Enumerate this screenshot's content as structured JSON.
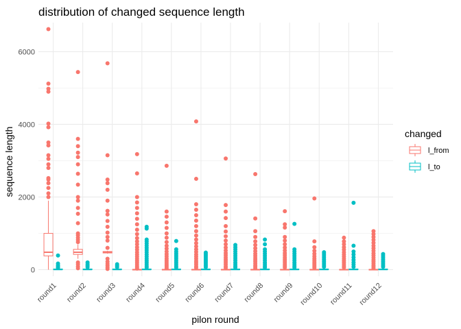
{
  "chart_data": {
    "type": "boxplot",
    "title": "distribution of changed sequence length",
    "xlabel": "pilon round",
    "ylabel": "sequence length",
    "ylim": [
      -180,
      6800
    ],
    "yticks": [
      0,
      2000,
      4000,
      6000
    ],
    "grid": true,
    "legend": {
      "title": "changed",
      "position": "right",
      "entries": [
        {
          "name": "l_from",
          "color": "#F8766D"
        },
        {
          "name": "l_to",
          "color": "#00BFC4"
        }
      ]
    },
    "categories": [
      "round1",
      "round2",
      "round3",
      "round4",
      "round5",
      "round6",
      "round7",
      "round8",
      "round9",
      "round10",
      "round11",
      "round12"
    ],
    "series": [
      {
        "name": "l_from",
        "color": "#F8766D",
        "boxes": [
          {
            "q1": 380,
            "median": 480,
            "q3": 1000,
            "whisker_low": 0,
            "whisker_high": 1900,
            "outliers": [
              6620,
              5120,
              4980,
              4900,
              4020,
              3920,
              3500,
              3420,
              3150,
              3050,
              2900,
              2800,
              2520,
              2480,
              2380,
              2250,
              2100,
              2000
            ]
          },
          {
            "q1": 420,
            "median": 480,
            "q3": 560,
            "whisker_low": 300,
            "whisker_high": 700,
            "outliers": [
              5440,
              3600,
              3400,
              3220,
              3100,
              2900,
              2640,
              2340,
              2000,
              1900,
              1700,
              1540,
              1280,
              1000,
              950,
              880,
              820,
              760,
              200,
              150,
              90,
              40
            ]
          },
          {
            "q1": 460,
            "median": 480,
            "q3": 500,
            "whisker_low": 440,
            "whisker_high": 520,
            "outliers": [
              5680,
              3150,
              2480,
              2380,
              2200,
              1900,
              1620,
              1520,
              1340,
              1180,
              1020,
              900,
              800,
              600,
              300,
              220,
              160,
              110,
              60,
              20
            ]
          },
          {
            "q1": 0,
            "median": 0,
            "q3": 10,
            "whisker_low": 0,
            "whisker_high": 20,
            "outliers": [
              3180,
              2650,
              2000,
              1850,
              1700,
              1550,
              1400,
              1250,
              1100,
              980,
              870,
              780,
              700,
              620,
              550,
              480,
              420,
              360,
              300,
              250,
              200,
              150,
              100,
              60,
              30
            ]
          },
          {
            "q1": 0,
            "median": 0,
            "q3": 10,
            "whisker_low": 0,
            "whisker_high": 20,
            "outliers": [
              2860,
              1600,
              1460,
              1300,
              1150,
              1000,
              880,
              760,
              660,
              580,
              500,
              430,
              370,
              310,
              260,
              210,
              160,
              120,
              80,
              40
            ]
          },
          {
            "q1": 0,
            "median": 0,
            "q3": 10,
            "whisker_low": 0,
            "whisker_high": 20,
            "outliers": [
              4080,
              2500,
              1800,
              1650,
              1500,
              1350,
              1200,
              1060,
              940,
              830,
              730,
              640,
              560,
              490,
              420,
              360,
              300,
              240,
              190,
              140,
              90,
              50
            ]
          },
          {
            "q1": 0,
            "median": 0,
            "q3": 10,
            "whisker_low": 0,
            "whisker_high": 20,
            "outliers": [
              3060,
              1780,
              1600,
              1420,
              1200,
              1050,
              920,
              800,
              700,
              610,
              530,
              460,
              400,
              340,
              290,
              240,
              190,
              140,
              90,
              50
            ]
          },
          {
            "q1": 0,
            "median": 0,
            "q3": 10,
            "whisker_low": 0,
            "whisker_high": 20,
            "outliers": [
              2630,
              1410,
              1060,
              900,
              780,
              680,
              590,
              510,
              440,
              380,
              320,
              270,
              220,
              170,
              120,
              80,
              40
            ]
          },
          {
            "q1": 0,
            "median": 0,
            "q3": 10,
            "whisker_low": 0,
            "whisker_high": 20,
            "outliers": [
              1610,
              1250,
              1160,
              900,
              800,
              700,
              610,
              530,
              460,
              400,
              340,
              290,
              240,
              190,
              140,
              100,
              60
            ]
          },
          {
            "q1": 0,
            "median": 0,
            "q3": 10,
            "whisker_low": 0,
            "whisker_high": 20,
            "outliers": [
              1960,
              780,
              620,
              520,
              440,
              370,
              310,
              260,
              210,
              170,
              130,
              90,
              50
            ]
          },
          {
            "q1": 0,
            "median": 0,
            "q3": 10,
            "whisker_low": 0,
            "whisker_high": 20,
            "outliers": [
              880,
              780,
              700,
              620,
              550,
              480,
              420,
              360,
              300,
              250,
              200,
              150,
              100,
              60
            ]
          },
          {
            "q1": 0,
            "median": 0,
            "q3": 10,
            "whisker_low": 0,
            "whisker_high": 20,
            "outliers": [
              1060,
              980,
              900,
              820,
              740,
              660,
              590,
              520,
              450,
              390,
              330,
              270,
              220,
              170,
              120,
              80,
              40
            ]
          }
        ]
      },
      {
        "name": "l_to",
        "color": "#00BFC4",
        "boxes": [
          {
            "q1": 0,
            "median": 5,
            "q3": 20,
            "whisker_low": 0,
            "whisker_high": 40,
            "outliers": [
              390,
              170,
              120,
              80,
              50
            ]
          },
          {
            "q1": 0,
            "median": 5,
            "q3": 20,
            "whisker_low": 0,
            "whisker_high": 40,
            "outliers": [
              200,
              150,
              110,
              70
            ]
          },
          {
            "q1": 0,
            "median": 5,
            "q3": 20,
            "whisker_low": 0,
            "whisker_high": 40,
            "outliers": [
              150,
              110,
              70
            ]
          },
          {
            "q1": 0,
            "median": 5,
            "q3": 20,
            "whisker_low": 0,
            "whisker_high": 40,
            "outliers": [
              1180,
              1130,
              830,
              780,
              720,
              660,
              600,
              540,
              480,
              420,
              360,
              300,
              250,
              200,
              150,
              100,
              60
            ]
          },
          {
            "q1": 0,
            "median": 5,
            "q3": 20,
            "whisker_low": 0,
            "whisker_high": 40,
            "outliers": [
              790,
              560,
              500,
              450,
              400,
              350,
              300,
              250,
              200,
              150,
              100,
              60
            ]
          },
          {
            "q1": 0,
            "median": 5,
            "q3": 20,
            "whisker_low": 0,
            "whisker_high": 40,
            "outliers": [
              470,
              430,
              390,
              350,
              310,
              270,
              230,
              190,
              150,
              110,
              70
            ]
          },
          {
            "q1": 0,
            "median": 5,
            "q3": 20,
            "whisker_low": 0,
            "whisker_high": 40,
            "outliers": [
              680,
              620,
              560,
              500,
              440,
              380,
              320,
              260,
              200,
              150,
              100,
              60
            ]
          },
          {
            "q1": 0,
            "median": 5,
            "q3": 20,
            "whisker_low": 0,
            "whisker_high": 40,
            "outliers": [
              830,
              700,
              560,
              500,
              440,
              380,
              320,
              260,
              200,
              150,
              100,
              60
            ]
          },
          {
            "q1": 0,
            "median": 5,
            "q3": 20,
            "whisker_low": 0,
            "whisker_high": 40,
            "outliers": [
              1260,
              560,
              500,
              440,
              380,
              320,
              260,
              200,
              150,
              100,
              60
            ]
          },
          {
            "q1": 0,
            "median": 5,
            "q3": 20,
            "whisker_low": 0,
            "whisker_high": 40,
            "outliers": [
              480,
              430,
              380,
              330,
              280,
              230,
              180,
              130,
              80
            ]
          },
          {
            "q1": 0,
            "median": 5,
            "q3": 20,
            "whisker_low": 0,
            "whisker_high": 40,
            "outliers": [
              1840,
              660,
              500,
              420,
              340,
              270,
              200,
              140,
              80
            ]
          },
          {
            "q1": 0,
            "median": 5,
            "q3": 20,
            "whisker_low": 0,
            "whisker_high": 40,
            "outliers": [
              430,
              380,
              330,
              280,
              230,
              180,
              130,
              80
            ]
          }
        ]
      }
    ]
  }
}
